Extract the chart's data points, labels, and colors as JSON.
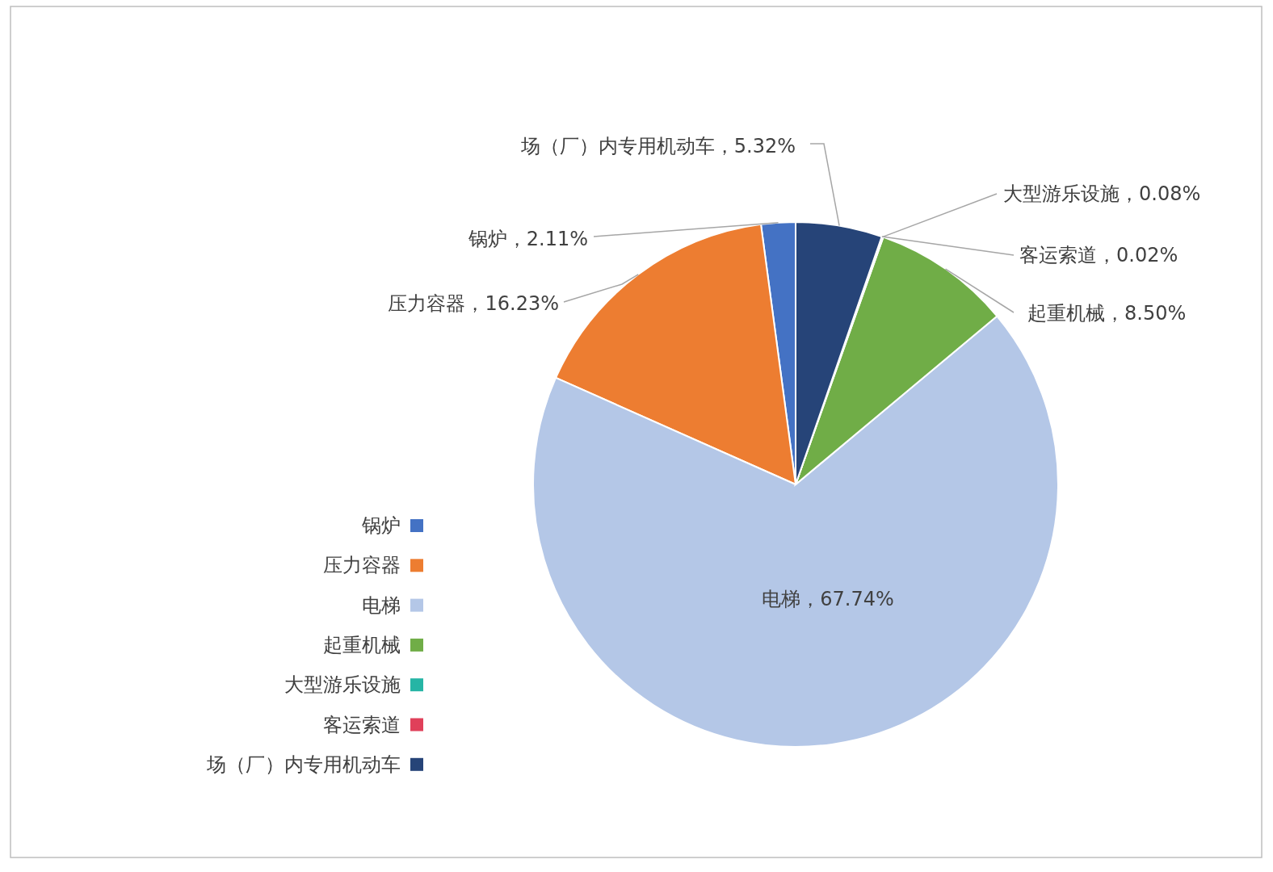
{
  "chart_data": {
    "type": "pie",
    "categories": [
      "锅炉",
      "压力容器",
      "电梯",
      "起重机械",
      "大型游乐设施",
      "客运索道",
      "场（厂）内专用机动车"
    ],
    "values": [
      2.11,
      16.23,
      67.74,
      8.5,
      0.08,
      0.02,
      5.32
    ],
    "colors": [
      "#4472c4",
      "#ed7d31",
      "#b4c7e7",
      "#70ad47",
      "#26b5a5",
      "#e0405a",
      "#264478"
    ],
    "value_labels": [
      "锅炉，2.11%",
      "压力容器，16.23%",
      "电梯，67.74%",
      "起重机械，8.50%",
      "大型游乐设施，0.08%",
      "客运索道，0.02%",
      "场（厂）内专用机动车，5.32%"
    ],
    "legend": "left"
  }
}
